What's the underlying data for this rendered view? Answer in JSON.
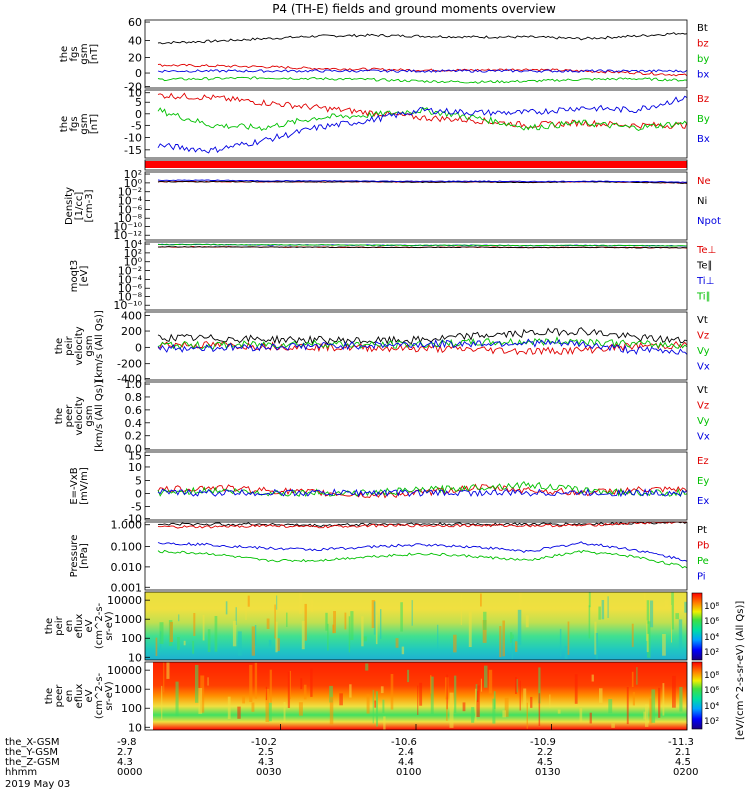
{
  "title": "P4 (TH-E) fields and ground moments overview",
  "date_label": "2019 May 03",
  "panels": [
    {
      "id": "fgs_gsm_full",
      "ylabel": [
        "the",
        "fgs",
        "gsm",
        "[nT]"
      ],
      "yticks": [
        "60",
        "40",
        "20",
        "0",
        "-20"
      ],
      "legend": [
        {
          "text": "Bt",
          "color": "#000000"
        },
        {
          "text": "bz",
          "color": "#e00000"
        },
        {
          "text": "by",
          "color": "#00c000"
        },
        {
          "text": "bx",
          "color": "#0000e0"
        }
      ]
    },
    {
      "id": "fgs_gsm_comp",
      "ylabel": [
        "the",
        "fgs",
        "gsm",
        "[nT]"
      ],
      "yticks": [
        "10",
        "5",
        "0",
        "-5",
        "-10",
        "-15"
      ],
      "legend": [
        {
          "text": "Bz",
          "color": "#e00000"
        },
        {
          "text": "By",
          "color": "#00c000"
        },
        {
          "text": "Bx",
          "color": "#0000e0"
        }
      ]
    },
    {
      "id": "flag_bar",
      "ylabel": [],
      "yticks": [],
      "legend": []
    },
    {
      "id": "density",
      "ylabel": [
        "Density",
        "[1/cc]",
        "[cm-3]"
      ],
      "yticks": [
        "10²",
        "10⁰",
        "10⁻²",
        "10⁻⁴",
        "10⁻⁶",
        "10⁻⁸",
        "10⁻¹⁰",
        "10⁻¹²"
      ],
      "legend": [
        {
          "text": "Ne",
          "color": "#e00000"
        },
        {
          "text": "Ni",
          "color": "#000000"
        },
        {
          "text": "Npot",
          "color": "#0000e0"
        }
      ]
    },
    {
      "id": "temperature",
      "ylabel": [
        "moqt3",
        "[eV]"
      ],
      "yticks": [
        "10⁴",
        "10²",
        "10⁰",
        "10⁻²",
        "10⁻⁴",
        "10⁻⁶",
        "10⁻⁸",
        "10⁻¹⁰"
      ],
      "legend": [
        {
          "text": "Te⊥",
          "color": "#e00000"
        },
        {
          "text": "Te∥",
          "color": "#000000"
        },
        {
          "text": "Ti⊥",
          "color": "#0000e0"
        },
        {
          "text": "Ti∥",
          "color": "#00c000"
        }
      ]
    },
    {
      "id": "peir_velocity",
      "ylabel": [
        "the",
        "peir",
        "velocity",
        "gsm",
        "[km/s (All Qs)]"
      ],
      "yticks": [
        "400",
        "200",
        "0",
        "-200",
        "-400"
      ],
      "legend": [
        {
          "text": "Vt",
          "color": "#000000"
        },
        {
          "text": "Vz",
          "color": "#e00000"
        },
        {
          "text": "Vy",
          "color": "#00c000"
        },
        {
          "text": "Vx",
          "color": "#0000e0"
        }
      ]
    },
    {
      "id": "peer_velocity",
      "ylabel": [
        "the",
        "peer",
        "velocity",
        "gsm",
        "[km/s (All Qs)]"
      ],
      "yticks": [
        "1.0",
        "0.8",
        "0.6",
        "0.4",
        "0.2",
        "0.0"
      ],
      "legend": [
        {
          "text": "Vt",
          "color": "#000000"
        },
        {
          "text": "Vz",
          "color": "#e00000"
        },
        {
          "text": "Vy",
          "color": "#00c000"
        },
        {
          "text": "Vx",
          "color": "#0000e0"
        }
      ]
    },
    {
      "id": "efield",
      "ylabel": [
        "E=-VxB",
        "[mV/m]"
      ],
      "yticks": [
        "15",
        "10",
        "5",
        "0",
        "-5",
        "-10"
      ],
      "legend": [
        {
          "text": "Ez",
          "color": "#e00000"
        },
        {
          "text": "Ey",
          "color": "#00c000"
        },
        {
          "text": "Ex",
          "color": "#0000e0"
        }
      ]
    },
    {
      "id": "pressure",
      "ylabel": [
        "Pressure",
        "[nPa]"
      ],
      "yticks": [
        "1.000",
        "0.100",
        "0.010",
        "0.001"
      ],
      "legend": [
        {
          "text": "Pt",
          "color": "#000000"
        },
        {
          "text": "Pb",
          "color": "#e00000"
        },
        {
          "text": "Pe",
          "color": "#00c000"
        },
        {
          "text": "Pi",
          "color": "#0000e0"
        }
      ]
    },
    {
      "id": "peir_spec",
      "ylabel": [
        "the",
        "peir",
        "en",
        "eflux",
        "eV",
        "(cm^2-s-",
        "sr-eV)"
      ],
      "yticks": [
        "10000",
        "1000",
        "100",
        "10"
      ],
      "legend": []
    },
    {
      "id": "peer_spec",
      "ylabel": [
        "the",
        "peer",
        "en",
        "eflux",
        "eV",
        "(cm^2-s-",
        "sr-eV)"
      ],
      "yticks": [
        "10000",
        "1000",
        "100",
        "10"
      ],
      "legend": []
    }
  ],
  "colorbar": {
    "ticks": [
      "10⁸",
      "10⁶",
      "10⁴",
      "10²"
    ],
    "ticks_lower": [
      "10⁸",
      "10⁶",
      "10⁴",
      "10²"
    ],
    "label": "[eV/(cm^2-s-sr-eV) (All Qs)]"
  },
  "xaxis": {
    "row_labels": [
      "the_X-GSM",
      "the_Y-GSM",
      "the_Z-GSM",
      "hhmm"
    ],
    "columns": [
      {
        "x": "-9.8",
        "y": "2.7",
        "z": "4.3",
        "t": "0000"
      },
      {
        "x": "-10.2",
        "y": "2.5",
        "z": "4.3",
        "t": "0030"
      },
      {
        "x": "-10.6",
        "y": "2.4",
        "z": "4.4",
        "t": "0100"
      },
      {
        "x": "-10.9",
        "y": "2.2",
        "z": "4.5",
        "t": "0130"
      },
      {
        "x": "-11.3",
        "y": "2.1",
        "z": "4.5",
        "t": "0200"
      }
    ]
  },
  "chart_data": {
    "type": "line",
    "title": "P4 (TH-E) fields and ground moments overview",
    "x_range": [
      "0000",
      "0200"
    ],
    "panels": [
      {
        "name": "the fgs gsm",
        "ylim": [
          -20,
          60
        ],
        "series": [
          {
            "name": "Bt",
            "approx": [
              33,
              35,
              38,
              41,
              42,
              41,
              40,
              40,
              38,
              41,
              45
            ]
          },
          {
            "name": "bz",
            "approx": [
              7,
              6,
              5,
              3,
              2,
              1,
              1,
              2,
              0,
              -2,
              -5
            ]
          },
          {
            "name": "by",
            "approx": [
              -10,
              -9,
              -8,
              -9,
              -10,
              -12,
              -13,
              -12,
              -10,
              -9,
              -11
            ]
          },
          {
            "name": "bx",
            "approx": [
              0,
              0,
              0,
              0,
              0,
              0,
              0,
              0,
              0,
              0,
              0
            ]
          }
        ]
      },
      {
        "name": "the fgs gsm",
        "ylim": [
          -17,
          10
        ],
        "series": [
          {
            "name": "Bz",
            "approx": [
              8,
              7,
              5,
              3,
              1,
              -1,
              -2,
              -4,
              -3,
              -4,
              -4
            ]
          },
          {
            "name": "By",
            "approx": [
              2,
              -4,
              -5,
              -1,
              0,
              2,
              -1,
              -5,
              -3,
              -5,
              -3
            ]
          },
          {
            "name": "Bx",
            "approx": [
              -12,
              -14,
              -10,
              -5,
              -2,
              2,
              1,
              1,
              3,
              2,
              7
            ]
          }
        ]
      },
      {
        "name": "Density",
        "ylim": [
          "1e-12",
          "1e2"
        ],
        "series": [
          {
            "name": "Ne",
            "approx": [
              1,
              1,
              1,
              0.9,
              1,
              0.8,
              0.9,
              0.7,
              1,
              0.8,
              0.5
            ]
          },
          {
            "name": "Ni",
            "approx": [
              1,
              1,
              1,
              0.9,
              1,
              0.8,
              0.9,
              0.7,
              1,
              0.8,
              0.5
            ]
          },
          {
            "name": "Npot",
            "approx": [
              2,
              2,
              1.5,
              1.5,
              1.4,
              1.2,
              1.3,
              1.1,
              1.2,
              1.1,
              0.8
            ]
          }
        ]
      },
      {
        "name": "moqt3",
        "ylim": [
          "1e-10",
          "1e4"
        ],
        "series": [
          {
            "name": "Te⊥",
            "approx": [
              1000,
              1000,
              900,
              900,
              800,
              800,
              900,
              700,
              800,
              700,
              600
            ]
          },
          {
            "name": "Te∥",
            "approx": [
              1000,
              1000,
              900,
              900,
              800,
              800,
              900,
              700,
              800,
              700,
              600
            ]
          },
          {
            "name": "Ti⊥",
            "approx": [
              3000,
              3000,
              2500,
              2500,
              2200,
              2000,
              2200,
              1800,
              2000,
              1800,
              1500
            ]
          },
          {
            "name": "Ti∥",
            "approx": [
              3000,
              3000,
              2500,
              2500,
              2200,
              2000,
              2200,
              1800,
              2000,
              1800,
              1500
            ]
          }
        ]
      },
      {
        "name": "the peir velocity gsm",
        "ylim": [
          -400,
          400
        ],
        "series": [
          {
            "name": "Vt",
            "approx": [
              100,
              90,
              80,
              70,
              60,
              70,
              120,
              150,
              180,
              100,
              60
            ]
          },
          {
            "name": "Vz",
            "approx": [
              20,
              10,
              0,
              -10,
              -20,
              -30,
              -40,
              -60,
              -50,
              0,
              10
            ]
          },
          {
            "name": "Vy",
            "approx": [
              10,
              5,
              20,
              30,
              10,
              20,
              40,
              50,
              60,
              20,
              10
            ]
          },
          {
            "name": "Vx",
            "approx": [
              -30,
              -20,
              -10,
              0,
              10,
              20,
              30,
              40,
              20,
              -50,
              -60
            ]
          }
        ]
      },
      {
        "name": "the peer velocity gsm",
        "ylim": [
          0,
          1
        ],
        "series": []
      },
      {
        "name": "E=-VxB",
        "ylim": [
          -10,
          15
        ],
        "series": [
          {
            "name": "Ez",
            "approx": [
              1,
              2,
              1,
              0,
              -1,
              0,
              2,
              1,
              0,
              1,
              1
            ]
          },
          {
            "name": "Ey",
            "approx": [
              0,
              1,
              0,
              0,
              0,
              1,
              2,
              3,
              1,
              0,
              0
            ]
          },
          {
            "name": "Ex",
            "approx": [
              0,
              0,
              0,
              0,
              0,
              0,
              0,
              0,
              0,
              0,
              0
            ]
          }
        ]
      },
      {
        "name": "Pressure",
        "ylim": [
          0.001,
          1.0
        ],
        "series": [
          {
            "name": "Pt",
            "approx": [
              0.8,
              0.8,
              0.8,
              0.7,
              0.8,
              0.8,
              0.8,
              0.8,
              0.8,
              0.9,
              1.0
            ]
          },
          {
            "name": "Pb",
            "approx": [
              0.6,
              0.6,
              0.7,
              0.6,
              0.7,
              0.7,
              0.7,
              0.7,
              0.7,
              0.9,
              1.0
            ]
          },
          {
            "name": "Pe",
            "approx": [
              0.05,
              0.04,
              0.02,
              0.02,
              0.03,
              0.04,
              0.03,
              0.02,
              0.05,
              0.03,
              0.01
            ]
          },
          {
            "name": "Pi",
            "approx": [
              0.12,
              0.1,
              0.07,
              0.06,
              0.08,
              0.1,
              0.08,
              0.05,
              0.12,
              0.06,
              0.02
            ]
          }
        ]
      }
    ]
  }
}
